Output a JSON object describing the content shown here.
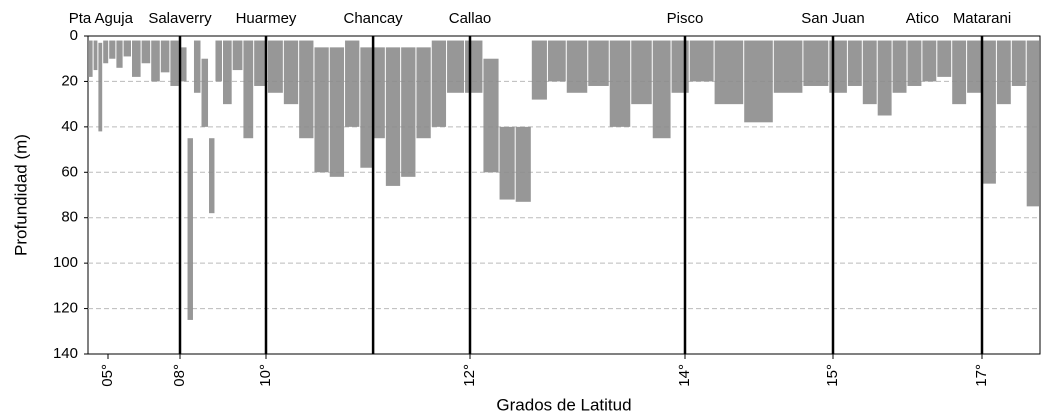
{
  "chart_data": {
    "type": "range",
    "xlabel": "Grados de Latitud",
    "ylabel": "Profundidad (m)",
    "color": "#8c8c8c",
    "ylim": [
      0,
      140
    ],
    "yticks": [
      0,
      20,
      40,
      60,
      80,
      100,
      120,
      140
    ],
    "grid": true,
    "y_inverted": true,
    "xticks": [
      {
        "value": 5,
        "label": "05°"
      },
      {
        "value": 8,
        "label": "08°"
      },
      {
        "value": 10,
        "label": "10°"
      },
      {
        "value": 12,
        "label": "12°"
      },
      {
        "value": 14,
        "label": "14°"
      },
      {
        "value": 15,
        "label": "15°"
      },
      {
        "value": 17,
        "label": "17°"
      }
    ],
    "ports": [
      {
        "name": "Pta Aguja",
        "lat": 4.7
      },
      {
        "name": "Salaverry",
        "lat": 8.0
      },
      {
        "name": "Huarmey",
        "lat": 10.0
      },
      {
        "name": "Chancay",
        "lat": 11.05
      },
      {
        "name": "Callao",
        "lat": 12.0
      },
      {
        "name": "Pisco",
        "lat": 14.0
      },
      {
        "name": "San Juan",
        "lat": 15.0
      },
      {
        "name": "Atico",
        "lat": 16.2
      },
      {
        "name": "Matarani",
        "lat": 17.0
      }
    ],
    "port_lines": [
      8.0,
      10.0,
      11.05,
      12.0,
      14.0,
      15.0,
      17.0
    ],
    "x": [
      4.3,
      4.5,
      4.7,
      4.9,
      5.2,
      5.5,
      5.8,
      6.2,
      6.6,
      7.0,
      7.4,
      7.8,
      8.1,
      8.25,
      8.4,
      8.6,
      8.75,
      8.9,
      9.1,
      9.35,
      9.6,
      9.85,
      10.1,
      10.25,
      10.4,
      10.55,
      10.7,
      10.85,
      11.0,
      11.1,
      11.25,
      11.4,
      11.55,
      11.7,
      11.85,
      12.05,
      12.2,
      12.35,
      12.5,
      12.65,
      12.8,
      13.0,
      13.2,
      13.4,
      13.6,
      13.8,
      13.95,
      14.1,
      14.3,
      14.5,
      14.7,
      14.9,
      15.1,
      15.3,
      15.5,
      15.7,
      15.9,
      16.1,
      16.3,
      16.5,
      16.7,
      16.9,
      17.1,
      17.3,
      17.5,
      17.7
    ],
    "top": [
      2,
      2,
      3,
      2,
      2,
      2,
      2,
      2,
      2,
      2,
      2,
      2,
      5,
      45,
      2,
      10,
      45,
      2,
      2,
      2,
      2,
      2,
      2,
      2,
      2,
      5,
      5,
      2,
      5,
      5,
      5,
      5,
      5,
      2,
      2,
      2,
      10,
      40,
      40,
      2,
      2,
      2,
      2,
      2,
      2,
      2,
      2,
      2,
      2,
      2,
      2,
      2,
      2,
      2,
      2,
      2,
      2,
      2,
      2,
      2,
      2,
      2,
      2,
      2,
      2,
      2
    ],
    "bottom": [
      18,
      15,
      42,
      12,
      10,
      14,
      9,
      18,
      12,
      20,
      16,
      22,
      20,
      125,
      25,
      40,
      78,
      20,
      30,
      15,
      45,
      22,
      25,
      30,
      45,
      60,
      62,
      40,
      58,
      45,
      66,
      62,
      45,
      40,
      25,
      25,
      60,
      72,
      73,
      28,
      20,
      25,
      22,
      40,
      30,
      45,
      25,
      20,
      30,
      38,
      25,
      22,
      25,
      22,
      30,
      35,
      25,
      22,
      20,
      18,
      30,
      25,
      65,
      30,
      22,
      75
    ]
  }
}
